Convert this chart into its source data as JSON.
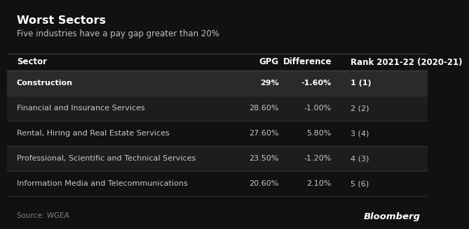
{
  "title": "Worst Sectors",
  "subtitle": "Five industries have a pay gap greater than 20%",
  "source": "Source: WGEA",
  "bloomberg": "Bloomberg",
  "bg_color": "#111111",
  "rows": [
    {
      "sector": "Construction",
      "gpg": "29%",
      "diff": "-1.60%",
      "rank": "1 (1)",
      "bold": true,
      "highlight": true
    },
    {
      "sector": "Financial and Insurance Services",
      "gpg": "28.60%",
      "diff": "-1.00%",
      "rank": "2 (2)",
      "bold": false,
      "highlight": false
    },
    {
      "sector": "Rental, Hiring and Real Estate Services",
      "gpg": "27.60%",
      "diff": "5.80%",
      "rank": "3 (4)",
      "bold": false,
      "highlight": false
    },
    {
      "sector": "Professional, Scientific and Technical Services",
      "gpg": "23.50%",
      "diff": "-1.20%",
      "rank": "4 (3)",
      "bold": false,
      "highlight": false
    },
    {
      "sector": "Information Media and Telecommunications",
      "gpg": "20.60%",
      "diff": "2.10%",
      "rank": "5 (6)",
      "bold": false,
      "highlight": false
    }
  ],
  "highlight_row_color": "#2a2a2a",
  "alt_row_color": "#1d1d1d",
  "base_row_color": "#111111",
  "separator_color": "#404040",
  "text_color": "#c8c8c8",
  "bold_text_color": "#ffffff",
  "title_color": "#ffffff",
  "subtitle_color": "#c0c0c0",
  "source_color": "#808080",
  "col_headers": [
    "Sector",
    "GPG",
    "Difference",
    "Rank 2021-22 (2020-21)"
  ],
  "header_font_size": 8.5,
  "row_font_size": 8.0,
  "title_font_size": 11.5,
  "subtitle_font_size": 8.5,
  "source_font_size": 7.5,
  "bloomberg_font_size": 9.5
}
